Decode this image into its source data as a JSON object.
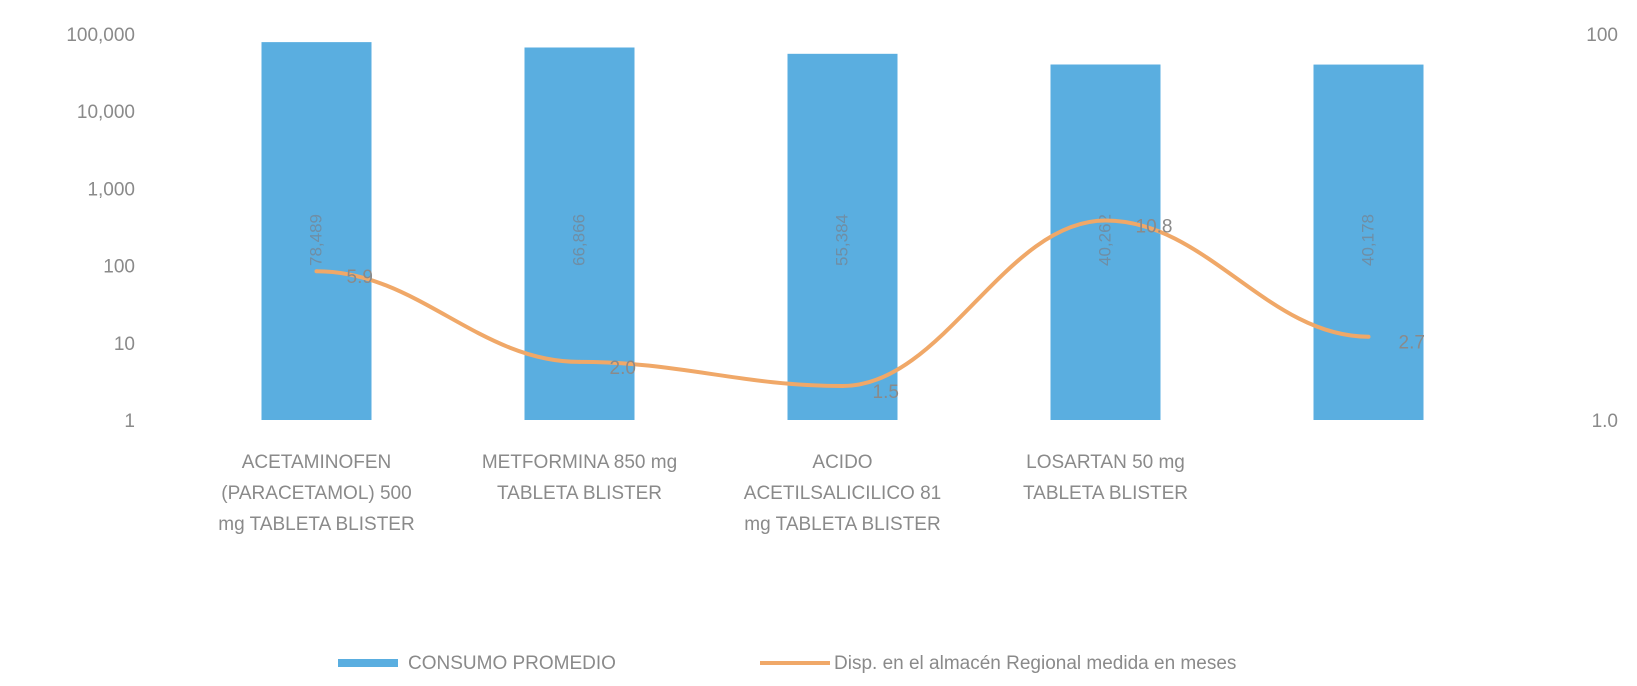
{
  "chart_data": {
    "type": "bar",
    "title": "",
    "categories": [
      [
        "ACETAMINOFEN",
        "(PARACETAMOL) 500",
        "mg TABLETA BLISTER"
      ],
      [
        "METFORMINA 850 mg",
        "TABLETA BLISTER"
      ],
      [
        "ACIDO",
        "ACETILSALICILICO 81",
        "mg TABLETA BLISTER"
      ],
      [
        "LOSARTAN 50 mg",
        "TABLETA BLISTER"
      ],
      [
        ""
      ]
    ],
    "series": [
      {
        "name": "CONSUMO PROMEDIO",
        "type": "bar",
        "axis": "left",
        "color": "#5aaee0",
        "values": [
          78489,
          66866,
          55384,
          40262,
          40178
        ],
        "labels": [
          "78,489",
          "66,866",
          "55,384",
          "40,262",
          "40,178"
        ]
      },
      {
        "name": "Disp. en el almacén Regional medida en meses",
        "type": "line",
        "axis": "right",
        "color": "#f0a868",
        "values": [
          5.9,
          2.0,
          1.5,
          10.8,
          2.7
        ],
        "labels": [
          "5.9",
          "2.0",
          "1.5",
          "10.8",
          "2.7"
        ]
      }
    ],
    "y_left": {
      "scale": "log",
      "range": [
        1,
        100000
      ],
      "ticks": [
        1,
        10,
        100,
        1000,
        10000,
        100000
      ],
      "tick_labels": [
        "1",
        "10",
        "100",
        "1,000",
        "10,000",
        "100,000"
      ]
    },
    "y_right": {
      "scale": "log",
      "range": [
        1,
        100
      ],
      "ticks": [
        1,
        100
      ],
      "tick_labels": [
        "1.0",
        "100"
      ]
    },
    "grid": false,
    "legend": "bottom"
  }
}
